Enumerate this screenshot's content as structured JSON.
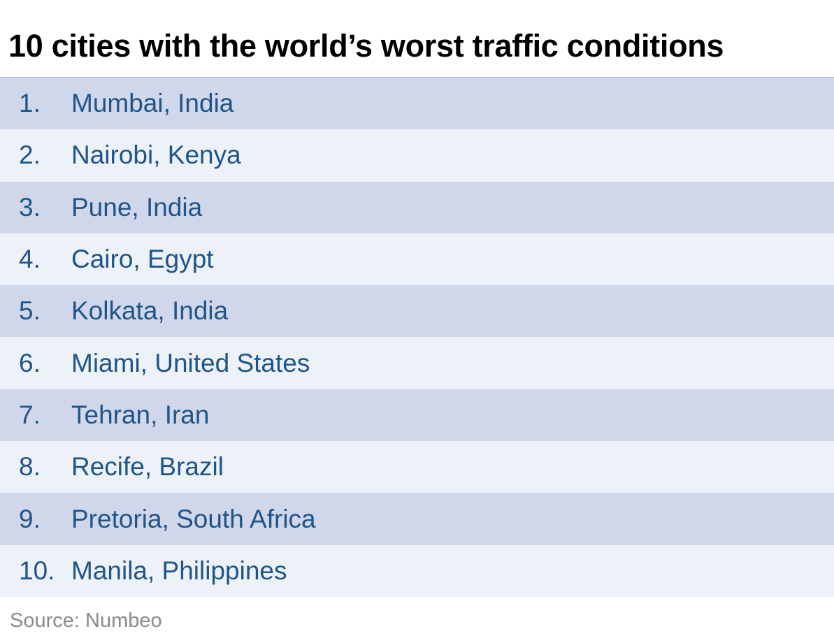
{
  "title": "10 cities with the world’s worst traffic conditions",
  "items": [
    {
      "rank": "1.",
      "city": "Mumbai, India"
    },
    {
      "rank": "2.",
      "city": "Nairobi, Kenya"
    },
    {
      "rank": "3.",
      "city": "Pune, India"
    },
    {
      "rank": "4.",
      "city": "Cairo, Egypt"
    },
    {
      "rank": "5.",
      "city": "Kolkata, India"
    },
    {
      "rank": "6.",
      "city": "Miami, United States"
    },
    {
      "rank": "7.",
      "city": "Tehran, Iran"
    },
    {
      "rank": "8.",
      "city": "Recife, Brazil"
    },
    {
      "rank": "9.",
      "city": "Pretoria, South Africa"
    },
    {
      "rank": "10.",
      "city": "Manila, Philippines"
    }
  ],
  "source": "Source: Numbeo",
  "colors": {
    "text_blue": "#1f5588",
    "row_dark": "#d1d7ea",
    "row_light": "#edf1f8"
  }
}
